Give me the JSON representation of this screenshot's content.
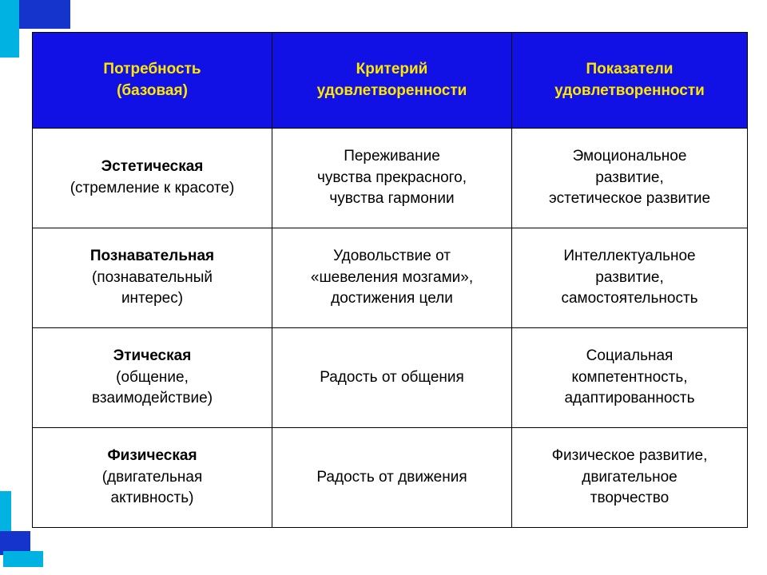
{
  "decoration": {
    "blue_primary": "#1434cb",
    "cyan": "#00b2e2"
  },
  "table": {
    "header_bg": "#1111e5",
    "header_text_color": "#ffe800",
    "cell_bg": "#ffffff",
    "cell_text_color": "#000000",
    "border_color": "#000000",
    "font_family": "Arial",
    "header_fontsize": 19,
    "cell_fontsize": 19,
    "columns": [
      "Потребность\n(базовая)",
      "Критерий\nудовлетворенности",
      "Показатели\nудовлетворенности"
    ],
    "rows": [
      {
        "title": "Эстетическая",
        "subtitle": "(стремление к красоте)",
        "criterion": "Переживание\nчувства прекрасного,\nчувства гармонии",
        "indicator": "Эмоциональное\nразвитие,\nэстетическое развитие"
      },
      {
        "title": "Познавательная",
        "subtitle": "(познавательный\nинтерес)",
        "criterion": "Удовольствие от\n«шевеления мозгами»,\nдостижения цели",
        "indicator": "Интеллектуальное\nразвитие,\nсамостоятельность"
      },
      {
        "title": "Этическая",
        "subtitle": "(общение,\nвзаимодействие)",
        "criterion": "Радость от общения",
        "indicator": "Социальная\nкомпетентность,\nадаптированность"
      },
      {
        "title": "Физическая",
        "subtitle": "(двигательная\nактивность)",
        "criterion": "Радость от движения",
        "indicator": "Физическое развитие,\nдвигательное\nтворчество"
      }
    ]
  }
}
